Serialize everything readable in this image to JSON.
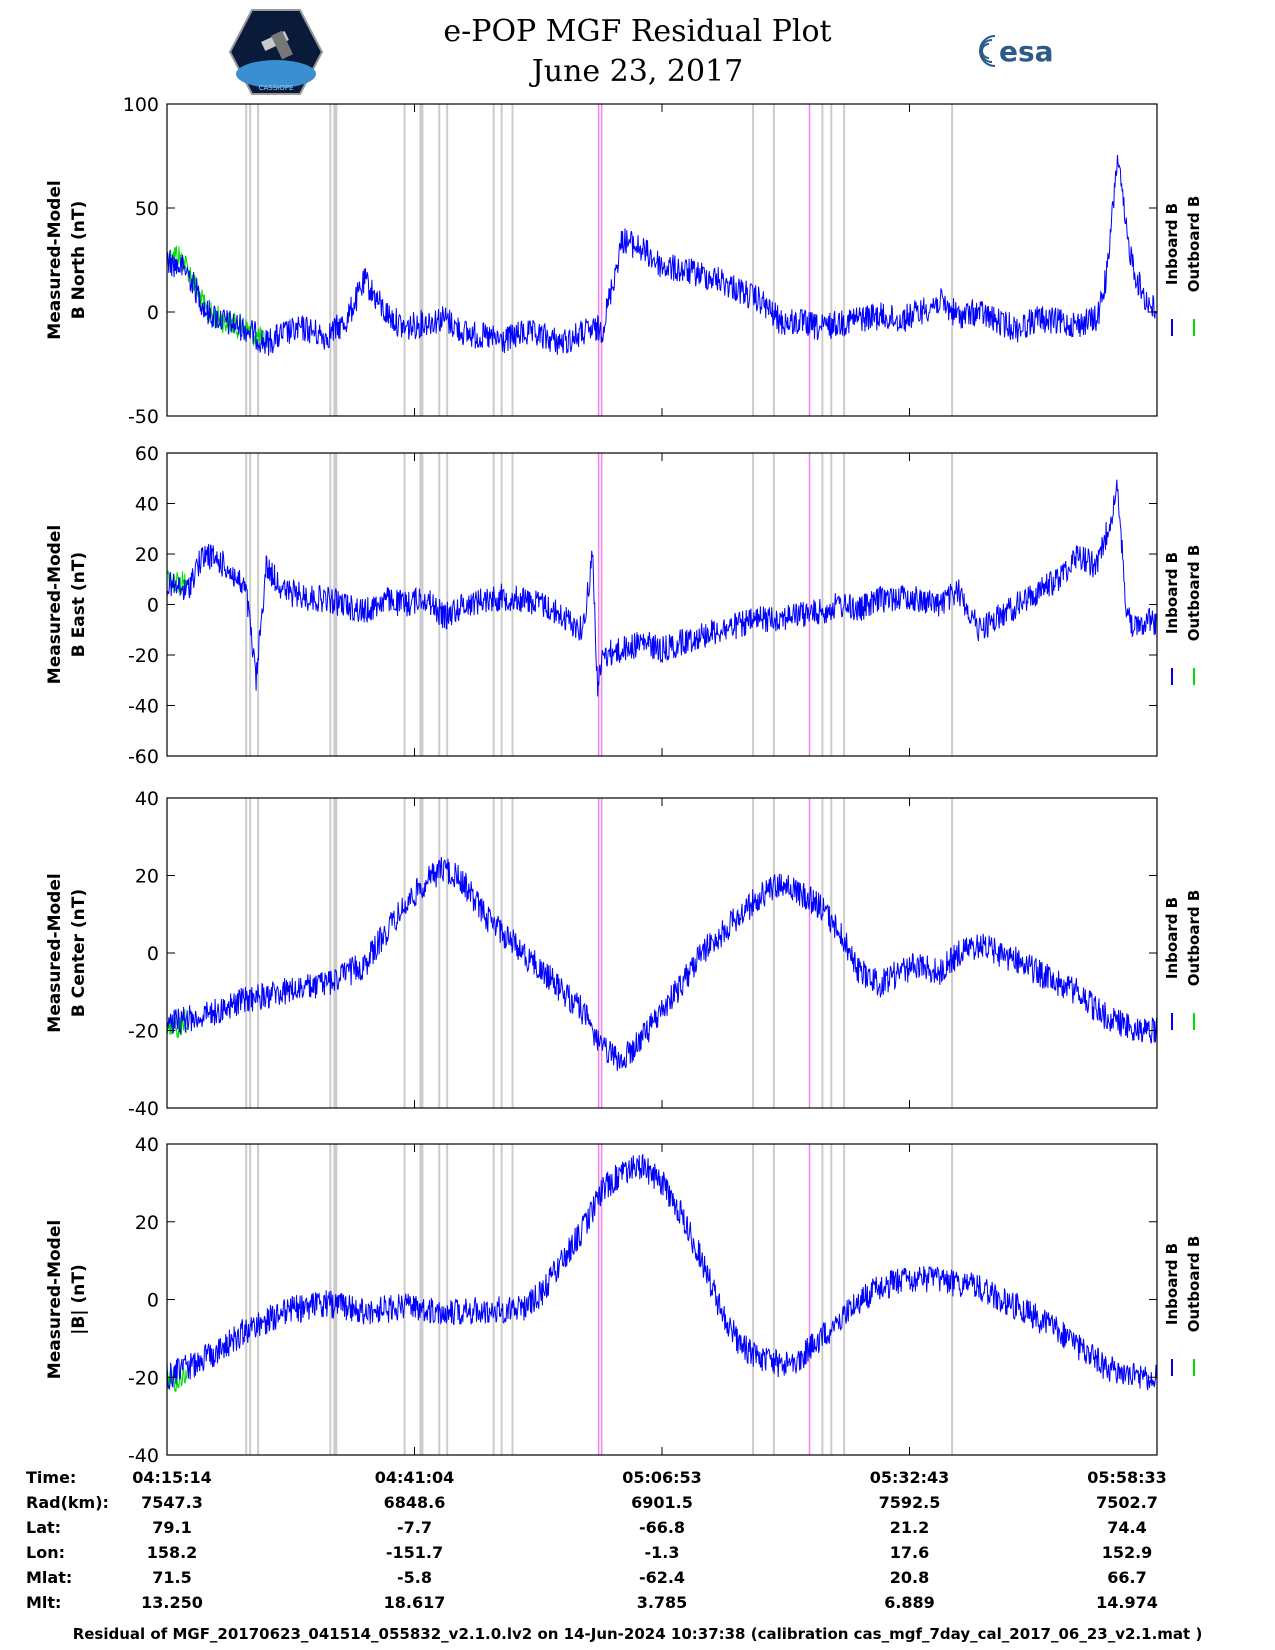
{
  "header": {
    "title_line1": "e-POP MGF Residual Plot",
    "title_line2": "June 23, 2017",
    "logo_left_caption": "CASSIOPE",
    "logo_right_text": "esa"
  },
  "colors": {
    "inboard": "#0000ff",
    "outboard": "#00e000",
    "marker_gray": "#cccccc",
    "marker_magenta": "#ee82ee"
  },
  "chart_data": [
    {
      "type": "line",
      "ylabel": [
        "Measured-Model",
        "B North (nT)"
      ],
      "ylim": [
        -50,
        100
      ],
      "yticks": [
        -50,
        0,
        50,
        100
      ],
      "legend": [
        "Inboard B",
        "Outboard B"
      ],
      "series": [
        {
          "name": "Inboard B",
          "x": [
            0,
            2,
            4,
            6,
            8,
            10,
            12,
            14,
            16,
            18,
            20,
            22,
            24,
            26,
            28,
            30,
            32,
            34,
            36,
            38,
            40,
            42,
            44,
            46,
            48,
            50,
            52,
            54,
            56,
            58,
            60,
            62,
            64,
            66,
            68,
            70,
            72,
            74,
            76,
            78,
            80,
            82,
            84,
            86,
            88,
            90,
            92,
            94,
            95,
            96,
            97,
            98,
            99,
            100
          ],
          "y": [
            25,
            20,
            0,
            -5,
            -8,
            -15,
            -10,
            -8,
            -12,
            -5,
            15,
            0,
            -8,
            -5,
            -3,
            -10,
            -12,
            -14,
            -10,
            -12,
            -15,
            -10,
            -8,
            35,
            30,
            22,
            20,
            18,
            15,
            10,
            5,
            -5,
            -5,
            -8,
            -5,
            -3,
            -2,
            -4,
            0,
            5,
            -2,
            0,
            -5,
            -8,
            -3,
            -5,
            -6,
            -3,
            20,
            75,
            35,
            15,
            5,
            0
          ]
        },
        {
          "name": "Outboard B",
          "x": [
            0,
            1,
            2,
            4,
            6,
            8,
            10
          ],
          "y": [
            25,
            28,
            22,
            0,
            -5,
            -8,
            -15
          ]
        }
      ],
      "markers_gray": [
        8,
        8.4,
        9.2,
        16.5,
        17,
        24,
        25.7,
        27.5,
        28.3,
        33,
        33.8,
        34.9,
        59.2,
        61.3,
        66.2,
        67.1,
        68.4,
        79.3
      ],
      "markers_magenta": [
        43.6,
        43.9,
        64.9
      ]
    },
    {
      "type": "line",
      "ylabel": [
        "Measured-Model",
        "B East (nT)"
      ],
      "ylim": [
        -60,
        60
      ],
      "yticks": [
        -60,
        -40,
        -20,
        0,
        20,
        40,
        60
      ],
      "legend": [
        "Inboard B",
        "Outboard B"
      ],
      "series": [
        {
          "name": "Inboard B",
          "x": [
            0,
            2,
            3,
            4,
            6,
            8,
            9,
            10,
            12,
            14,
            16,
            18,
            20,
            22,
            24,
            26,
            28,
            30,
            32,
            34,
            36,
            38,
            40,
            42,
            43,
            43.5,
            44,
            46,
            48,
            50,
            52,
            54,
            56,
            58,
            60,
            62,
            64,
            66,
            68,
            70,
            72,
            74,
            76,
            78,
            80,
            82,
            84,
            86,
            88,
            90,
            92,
            94,
            95,
            96,
            97,
            98,
            99,
            100
          ],
          "y": [
            8,
            5,
            15,
            20,
            15,
            5,
            -30,
            15,
            5,
            3,
            2,
            0,
            -3,
            2,
            0,
            3,
            -5,
            0,
            2,
            3,
            2,
            0,
            -5,
            -10,
            20,
            -35,
            -20,
            -18,
            -15,
            -18,
            -15,
            -12,
            -10,
            -8,
            -6,
            -5,
            -4,
            -3,
            0,
            -2,
            2,
            3,
            2,
            0,
            5,
            -10,
            -5,
            0,
            5,
            10,
            20,
            15,
            30,
            45,
            -5,
            -10,
            -5,
            -8
          ]
        },
        {
          "name": "Outboard B",
          "x": [
            0,
            1,
            2
          ],
          "y": [
            10,
            9,
            8
          ]
        }
      ],
      "markers_gray": [
        8,
        8.4,
        9.2,
        16.5,
        17,
        24,
        25.7,
        27.5,
        28.3,
        33,
        33.8,
        34.9,
        59.2,
        61.3,
        66.2,
        67.1,
        68.4,
        79.3
      ],
      "markers_magenta": [
        43.6,
        43.9,
        64.9
      ]
    },
    {
      "type": "line",
      "ylabel": [
        "Measured-Model",
        "B Center (nT)"
      ],
      "ylim": [
        -40,
        40
      ],
      "yticks": [
        -40,
        -20,
        0,
        20,
        40
      ],
      "legend": [
        "Inboard B",
        "Outboard B"
      ],
      "series": [
        {
          "name": "Inboard B",
          "x": [
            0,
            4,
            8,
            12,
            16,
            20,
            22,
            24,
            26,
            28,
            30,
            32,
            34,
            36,
            38,
            40,
            42,
            44,
            46,
            48,
            50,
            52,
            54,
            56,
            58,
            60,
            62,
            64,
            66,
            68,
            70,
            72,
            74,
            76,
            78,
            80,
            82,
            84,
            86,
            88,
            90,
            92,
            94,
            96,
            98,
            100
          ],
          "y": [
            -18,
            -16,
            -12,
            -10,
            -8,
            -3,
            5,
            12,
            18,
            22,
            18,
            10,
            5,
            0,
            -5,
            -10,
            -15,
            -25,
            -28,
            -22,
            -15,
            -8,
            0,
            5,
            10,
            15,
            18,
            15,
            12,
            5,
            -5,
            -8,
            -5,
            -3,
            -5,
            0,
            2,
            0,
            -2,
            -5,
            -8,
            -10,
            -15,
            -18,
            -20,
            -20
          ]
        },
        {
          "name": "Outboard B",
          "x": [
            0,
            1,
            2
          ],
          "y": [
            -18,
            -20,
            -17
          ]
        }
      ],
      "markers_gray": [
        8,
        8.4,
        9.2,
        16.5,
        17,
        24,
        25.7,
        27.5,
        28.3,
        33,
        33.8,
        34.9,
        59.2,
        61.3,
        66.2,
        67.1,
        68.4,
        79.3
      ],
      "markers_magenta": [
        43.6,
        43.9,
        64.9
      ]
    },
    {
      "type": "line",
      "ylabel": [
        "Measured-Model",
        "|B| (nT)"
      ],
      "ylim": [
        -40,
        40
      ],
      "yticks": [
        -40,
        -20,
        0,
        20,
        40
      ],
      "legend": [
        "Inboard B",
        "Outboard B"
      ],
      "series": [
        {
          "name": "Inboard B",
          "x": [
            0,
            4,
            8,
            12,
            16,
            20,
            24,
            28,
            32,
            36,
            38,
            40,
            42,
            44,
            46,
            48,
            50,
            52,
            54,
            56,
            58,
            60,
            62,
            64,
            66,
            68,
            70,
            72,
            74,
            76,
            78,
            80,
            82,
            84,
            86,
            88,
            90,
            92,
            94,
            96,
            98,
            100
          ],
          "y": [
            -20,
            -15,
            -8,
            -3,
            -1,
            -3,
            -2,
            -3,
            -3,
            -2,
            2,
            10,
            18,
            28,
            33,
            34,
            30,
            22,
            10,
            -3,
            -12,
            -15,
            -17,
            -15,
            -10,
            -5,
            0,
            3,
            5,
            5,
            5,
            4,
            3,
            0,
            -2,
            -5,
            -8,
            -12,
            -16,
            -19,
            -20,
            -20
          ]
        },
        {
          "name": "Outboard B",
          "x": [
            0,
            1,
            2
          ],
          "y": [
            -20,
            -21,
            -19
          ]
        }
      ],
      "markers_gray": [
        8,
        8.4,
        9.2,
        16.5,
        17,
        24,
        25.7,
        27.5,
        28.3,
        33,
        33.8,
        34.9,
        59.2,
        61.3,
        66.2,
        67.1,
        68.4,
        79.3
      ],
      "markers_magenta": [
        43.6,
        43.9,
        64.9
      ]
    }
  ],
  "ephemeris": {
    "labels": [
      "Time:",
      "Rad(km):",
      "Lat:",
      "Lon:",
      "Mlat:",
      "Mlt:"
    ],
    "tick_fractions": [
      0,
      0.25,
      0.5,
      0.75,
      1.0
    ],
    "rows": [
      [
        "04:15:14",
        "04:41:04",
        "05:06:53",
        "05:32:43",
        "05:58:33"
      ],
      [
        "7547.3",
        "6848.6",
        "6901.5",
        "7592.5",
        "7502.7"
      ],
      [
        "79.1",
        "-7.7",
        "-66.8",
        "21.2",
        "74.4"
      ],
      [
        "158.2",
        "-151.7",
        "-1.3",
        "17.6",
        "152.9"
      ],
      [
        "71.5",
        "-5.8",
        "-62.4",
        "20.8",
        "66.7"
      ],
      [
        "13.250",
        "18.617",
        "3.785",
        "6.889",
        "14.974"
      ]
    ]
  },
  "footer": "Residual of MGF_20170623_041514_055832_v2.1.0.lv2 on 14-Jun-2024 10:37:38 (calibration cas_mgf_7day_cal_2017_06_23_v2.1.mat )"
}
